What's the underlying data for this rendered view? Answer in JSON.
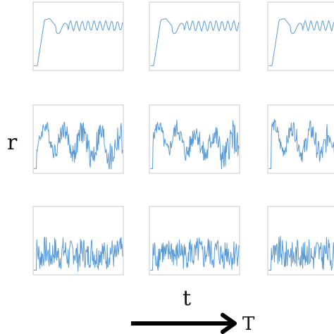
{
  "figure": {
    "row_label": "r",
    "col_label": "t",
    "arrow_label": "T",
    "line_color": "#5b9bd5",
    "frame_color": "#c8c8c8"
  },
  "chart_data": {
    "type": "line",
    "grid": false,
    "rows": 3,
    "cols": 3,
    "panels": [
      {
        "row": 0,
        "col": 0,
        "pattern": "settle-oscillate",
        "ylim": [
          0,
          1
        ],
        "seed": 1
      },
      {
        "row": 0,
        "col": 1,
        "pattern": "settle-oscillate",
        "ylim": [
          0,
          1
        ],
        "seed": 2
      },
      {
        "row": 0,
        "col": 2,
        "pattern": "settle-oscillate",
        "ylim": [
          0,
          1
        ],
        "seed": 3
      },
      {
        "row": 1,
        "col": 0,
        "pattern": "irregular",
        "ylim": [
          0,
          1
        ],
        "seed": 4
      },
      {
        "row": 1,
        "col": 1,
        "pattern": "irregular",
        "ylim": [
          0,
          1
        ],
        "seed": 5
      },
      {
        "row": 1,
        "col": 2,
        "pattern": "irregular",
        "ylim": [
          0,
          1
        ],
        "seed": 6
      },
      {
        "row": 2,
        "col": 0,
        "pattern": "noisy",
        "ylim": [
          0,
          1
        ],
        "seed": 7
      },
      {
        "row": 2,
        "col": 1,
        "pattern": "noisy",
        "ylim": [
          0,
          1
        ],
        "seed": 8
      },
      {
        "row": 2,
        "col": 2,
        "pattern": "noisy",
        "ylim": [
          0,
          1
        ],
        "seed": 9
      }
    ]
  }
}
